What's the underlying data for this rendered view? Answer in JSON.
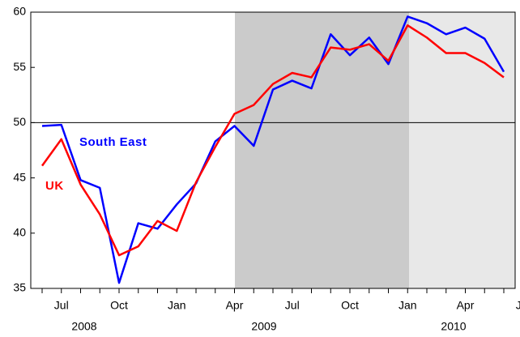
{
  "chart_data": {
    "type": "line",
    "categories": [
      null,
      "Jul",
      null,
      null,
      "Oct",
      null,
      null,
      "Jan",
      null,
      null,
      "Apr",
      null,
      null,
      "Jul",
      null,
      null,
      "Oct",
      null,
      null,
      "Jan",
      null,
      null,
      "Apr",
      null,
      null,
      "Jul"
    ],
    "years": [
      "2008",
      "2009",
      "2010"
    ],
    "series": [
      {
        "name": "South East",
        "color": "#0000ff",
        "values": [
          49.7,
          49.8,
          44.8,
          44.1,
          35.5,
          40.9,
          40.4,
          42.6,
          44.5,
          48.3,
          49.7,
          47.9,
          53.0,
          53.8,
          53.1,
          58.0,
          56.1,
          57.7,
          55.3,
          59.6,
          59.0,
          58.0,
          58.6,
          57.6,
          54.6,
          null
        ]
      },
      {
        "name": "UK",
        "color": "#ff0000",
        "values": [
          46.1,
          48.5,
          44.4,
          41.7,
          38.0,
          38.8,
          41.1,
          40.2,
          44.6,
          47.8,
          50.8,
          51.6,
          53.5,
          54.5,
          54.1,
          56.8,
          56.6,
          57.1,
          55.6,
          58.8,
          57.7,
          56.3,
          56.3,
          55.4,
          54.1,
          null
        ]
      }
    ],
    "ylim": [
      35,
      60
    ],
    "yticks": [
      35,
      40,
      45,
      50,
      55,
      60
    ],
    "reference_line": 50
  }
}
